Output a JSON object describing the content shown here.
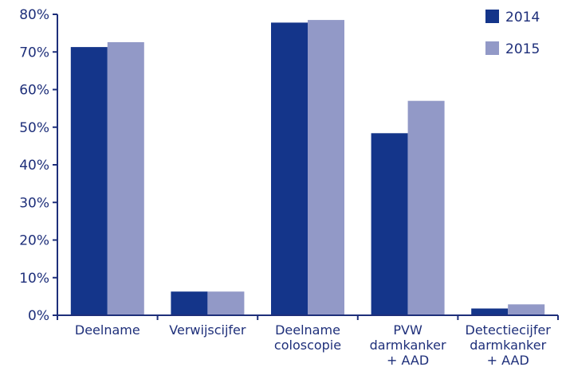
{
  "chart_data": {
    "type": "bar",
    "categories": [
      [
        "Deelname"
      ],
      [
        "Verwijscijfer"
      ],
      [
        "Deelname",
        "coloscopie"
      ],
      [
        "PVW",
        "darmkanker",
        "+ AAD"
      ],
      [
        "Detectiecijfer",
        "darmkanker",
        "+ AAD"
      ]
    ],
    "series": [
      {
        "name": "2014",
        "color": "#14358a",
        "values": [
          71.3,
          6.3,
          77.8,
          48.4,
          1.8
        ]
      },
      {
        "name": "2015",
        "color": "#9299c7",
        "values": [
          72.6,
          6.3,
          78.5,
          57.0,
          2.9
        ]
      }
    ],
    "yticks": [
      "0%",
      "10%",
      "20%",
      "30%",
      "40%",
      "50%",
      "60%",
      "70%",
      "80%"
    ],
    "ylim": [
      0,
      80
    ],
    "grid": false,
    "legend_position": "top-right",
    "title": "",
    "xlabel": "",
    "ylabel": ""
  }
}
